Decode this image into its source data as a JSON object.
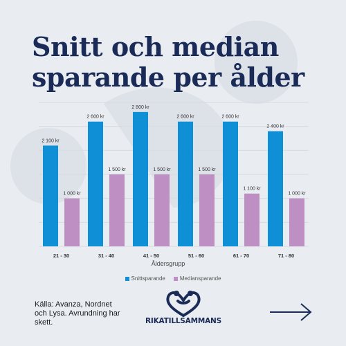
{
  "title": "Snitt och median sparande per ålder",
  "chart_data": {
    "type": "bar",
    "categories": [
      "21 - 30",
      "31 - 40",
      "41 - 50",
      "51 - 60",
      "61 - 70",
      "71 - 80"
    ],
    "series": [
      {
        "name": "Snittsparande",
        "values": [
          2100,
          2600,
          2800,
          2600,
          2600,
          2400
        ],
        "labels": [
          "2 100 kr",
          "2 600 kr",
          "2 800 kr",
          "2 600 kr",
          "2 600 kr",
          "2 400 kr"
        ],
        "color": "#0e8fd6"
      },
      {
        "name": "Mediansparande",
        "values": [
          1000,
          1500,
          1500,
          1500,
          1100,
          1000
        ],
        "labels": [
          "1 000 kr",
          "1 500 kr",
          "1 500 kr",
          "1 500 kr",
          "1 100 kr",
          "1 000 kr"
        ],
        "color": "#bd8fc2"
      }
    ],
    "xlabel": "Åldersgrupp",
    "ylabel": "",
    "ylim": [
      0,
      3000
    ],
    "grid": true,
    "legend": "bottom"
  },
  "source": "Källa: Avanza, Nordnet och Lysa. Avrundning har skett.",
  "logo": {
    "text": "RIKATILLSAMMANS",
    "icon": "heart-people-icon"
  },
  "next_arrow": {
    "icon": "arrow-right-icon"
  },
  "colors": {
    "title": "#1a2b57",
    "background": "#e9ecf1"
  }
}
